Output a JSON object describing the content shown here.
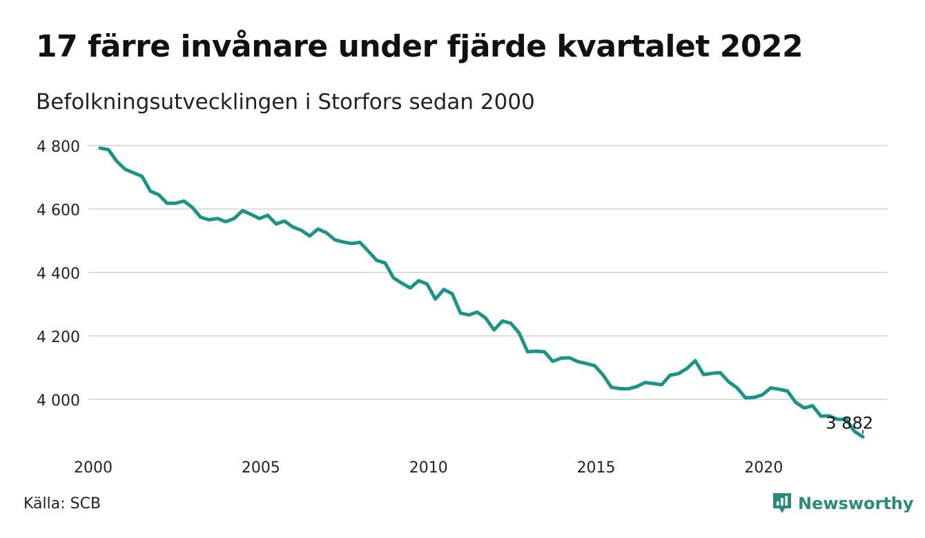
{
  "title": "17 färre invånare under fjärde kvartalet 2022",
  "subtitle": "Befolkningsutvecklingen i Storfors sedan 2000",
  "source": "Källa: SCB",
  "brand": "Newsworthy",
  "colors": {
    "line": "#1b9385",
    "grid": "#dddddd",
    "brand": "#2b8a7d",
    "text": "#111111"
  },
  "chart_data": {
    "type": "line",
    "ylim": [
      3850,
      4800
    ],
    "y_ticks": [
      4800,
      4600,
      4400,
      4200,
      4000
    ],
    "y_tick_labels": [
      "4 800",
      "4 600",
      "4 400",
      "4 200",
      "4 000"
    ],
    "xlim": [
      2000,
      2023
    ],
    "x_ticks": [
      2000,
      2005,
      2010,
      2015,
      2020
    ],
    "x_tick_labels": [
      "2000",
      "2005",
      "2010",
      "2015",
      "2020"
    ],
    "grid": true,
    "end_label": "3 882",
    "x": [
      2000.0,
      2000.25,
      2000.5,
      2000.75,
      2001.0,
      2001.25,
      2001.5,
      2001.75,
      2002.0,
      2002.25,
      2002.5,
      2002.75,
      2003.0,
      2003.25,
      2003.5,
      2003.75,
      2004.0,
      2004.25,
      2004.5,
      2004.75,
      2005.0,
      2005.25,
      2005.5,
      2005.75,
      2006.0,
      2006.25,
      2006.5,
      2006.75,
      2007.0,
      2007.25,
      2007.5,
      2007.75,
      2008.0,
      2008.25,
      2008.5,
      2008.75,
      2009.0,
      2009.25,
      2009.5,
      2009.75,
      2010.0,
      2010.25,
      2010.5,
      2010.75,
      2011.0,
      2011.25,
      2011.5,
      2011.75,
      2012.0,
      2012.25,
      2012.5,
      2012.75,
      2013.0,
      2013.25,
      2013.5,
      2013.75,
      2014.0,
      2014.25,
      2014.5,
      2014.75,
      2015.0,
      2015.25,
      2015.5,
      2015.75,
      2016.0,
      2016.25,
      2016.5,
      2016.75,
      2017.0,
      2017.25,
      2017.5,
      2017.75,
      2018.0,
      2018.25,
      2018.5,
      2018.75,
      2019.0,
      2019.25,
      2019.5,
      2019.75,
      2020.0,
      2020.25,
      2020.5,
      2020.75,
      2021.0,
      2021.25,
      2021.5,
      2021.75,
      2022.0,
      2022.25,
      2022.5,
      2022.75
    ],
    "values": [
      4792,
      4787,
      4750,
      4725,
      4714,
      4703,
      4656,
      4645,
      4618,
      4618,
      4625,
      4605,
      4574,
      4566,
      4570,
      4560,
      4570,
      4595,
      4583,
      4570,
      4580,
      4553,
      4562,
      4543,
      4533,
      4515,
      4537,
      4525,
      4503,
      4496,
      4491,
      4495,
      4467,
      4438,
      4430,
      4383,
      4366,
      4351,
      4374,
      4364,
      4316,
      4346,
      4333,
      4272,
      4266,
      4275,
      4256,
      4219,
      4247,
      4240,
      4209,
      4150,
      4152,
      4150,
      4120,
      4130,
      4131,
      4119,
      4113,
      4106,
      4077,
      4038,
      4034,
      4033,
      4040,
      4053,
      4050,
      4046,
      4076,
      4081,
      4097,
      4122,
      4078,
      4082,
      4084,
      4055,
      4036,
      4005,
      4006,
      4014,
      4036,
      4032,
      4026,
      3990,
      3973,
      3980,
      3947,
      3948,
      3937,
      3937,
      3899,
      3882
    ]
  }
}
